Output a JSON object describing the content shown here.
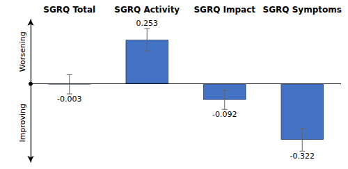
{
  "chart_data": {
    "type": "bar",
    "categories": [
      "SGRQ Total",
      "SGRQ Activity",
      "SGRQ Impact",
      "SGRQ Symptoms"
    ],
    "values": [
      -0.003,
      0.253,
      -0.092,
      -0.322
    ],
    "errors": [
      0.055,
      0.065,
      0.055,
      0.065
    ],
    "color": "#4472C4",
    "ylim": [
      -0.45,
      0.37
    ],
    "annotations": [
      "Worsening",
      "Improving"
    ],
    "data_labels": true,
    "tick_labels": "x",
    "grid": false
  }
}
